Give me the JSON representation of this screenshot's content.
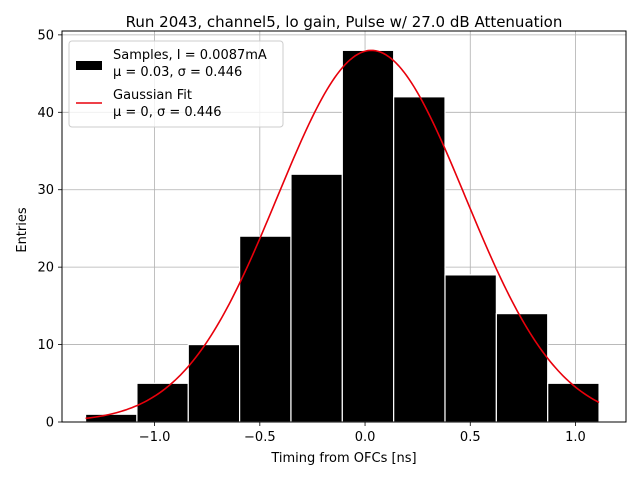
{
  "chart_data": {
    "type": "bar",
    "title": "Run 2043, channel5, lo gain, Pulse w/ 27.0 dB Attenuation",
    "xlabel": "Timing from OFCs [ns]",
    "ylabel": "Entries",
    "xlim": [
      -1.44,
      1.24
    ],
    "ylim": [
      0,
      50.5
    ],
    "xticks": [
      -1.0,
      -0.5,
      0.0,
      0.5,
      1.0
    ],
    "xtick_labels": [
      "−1.0",
      "−0.5",
      "0.0",
      "0.5",
      "1.0"
    ],
    "yticks": [
      0,
      10,
      20,
      30,
      40,
      50
    ],
    "ytick_labels": [
      "0",
      "10",
      "20",
      "30",
      "40",
      "50"
    ],
    "grid": true,
    "legend_position": "top-left",
    "bins": [
      {
        "left": -1.328,
        "right": -1.084,
        "count": 1
      },
      {
        "left": -1.084,
        "right": -0.84,
        "count": 5
      },
      {
        "left": -0.84,
        "right": -0.596,
        "count": 10
      },
      {
        "left": -0.596,
        "right": -0.352,
        "count": 24
      },
      {
        "left": -0.352,
        "right": -0.108,
        "count": 32
      },
      {
        "left": -0.108,
        "right": 0.136,
        "count": 48
      },
      {
        "left": 0.136,
        "right": 0.38,
        "count": 42
      },
      {
        "left": 0.38,
        "right": 0.624,
        "count": 19
      },
      {
        "left": 0.624,
        "right": 0.868,
        "count": 14
      },
      {
        "left": 0.868,
        "right": 1.112,
        "count": 5
      }
    ],
    "series": [
      {
        "name": "Samples, I = 0.0087mA",
        "name_line2": "μ = 0.03, σ = 0.446",
        "kind": "histogram",
        "color": "#000000"
      },
      {
        "name": "Gaussian Fit",
        "name_line2": "μ = 0, σ = 0.446",
        "kind": "line",
        "color": "#e8000b",
        "amplitude": 48,
        "mu": 0.03,
        "sigma": 0.446,
        "x_range": [
          -1.328,
          1.112
        ]
      }
    ]
  }
}
